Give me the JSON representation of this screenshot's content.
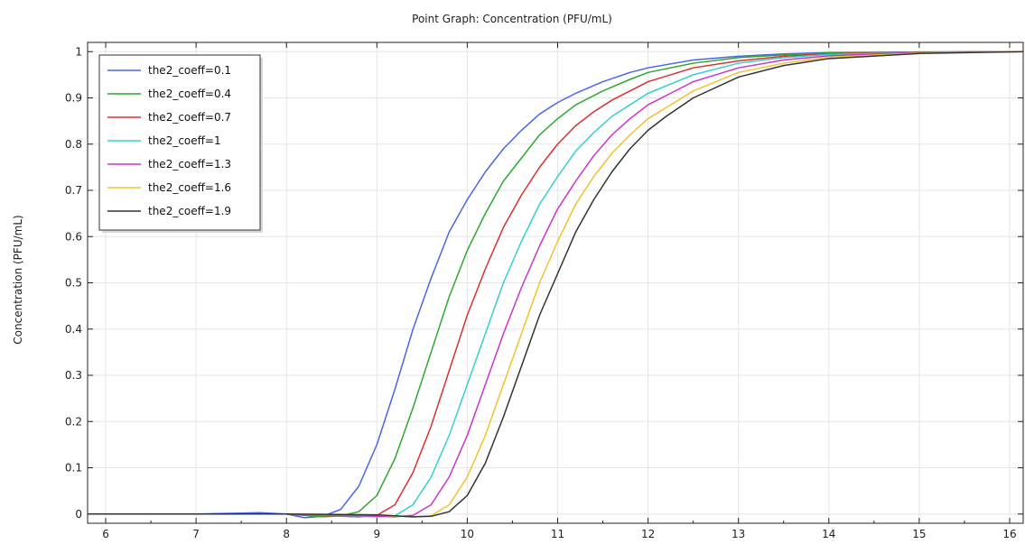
{
  "chart_data": {
    "type": "line",
    "title": "Point Graph: Concentration (PFU/mL)",
    "xlabel": "",
    "ylabel": "Concentration (PFU/mL)",
    "xlim": [
      5.8,
      16.15
    ],
    "ylim": [
      -0.02,
      1.02
    ],
    "grid": true,
    "legend_position": "top-left",
    "x_ticks": [
      6,
      7,
      8,
      9,
      10,
      11,
      12,
      13,
      14,
      15,
      16
    ],
    "y_ticks": [
      0,
      0.1,
      0.2,
      0.3,
      0.4,
      0.5,
      0.6,
      0.7,
      0.8,
      0.9,
      1
    ],
    "x_tick_labels": [
      "6",
      "7",
      "8",
      "9",
      "10",
      "11",
      "12",
      "13",
      "14",
      "15",
      "16"
    ],
    "y_tick_labels": [
      "0",
      "0.1",
      "0.2",
      "0.3",
      "0.4",
      "0.5",
      "0.6",
      "0.7",
      "0.8",
      "0.9",
      "1"
    ],
    "series": [
      {
        "name": "the2_coeff=0.1",
        "color": "#4a66e8",
        "x": [
          5.8,
          7.0,
          7.5,
          7.7,
          8.0,
          8.2,
          8.4,
          8.6,
          8.8,
          9.0,
          9.2,
          9.4,
          9.6,
          9.8,
          10.0,
          10.2,
          10.4,
          10.6,
          10.8,
          11.0,
          11.2,
          11.5,
          11.8,
          12.0,
          12.5,
          13.0,
          13.5,
          14.0,
          15.0,
          16.15
        ],
        "y": [
          0,
          0,
          0.002,
          0.003,
          0,
          -0.008,
          -0.005,
          0.01,
          0.06,
          0.15,
          0.27,
          0.4,
          0.51,
          0.61,
          0.68,
          0.74,
          0.79,
          0.83,
          0.865,
          0.89,
          0.91,
          0.935,
          0.955,
          0.965,
          0.982,
          0.99,
          0.995,
          0.998,
          0.999,
          1.0
        ]
      },
      {
        "name": "the2_coeff=0.4",
        "color": "#2fa82f",
        "x": [
          5.8,
          7.0,
          8.0,
          8.4,
          8.6,
          8.8,
          9.0,
          9.2,
          9.4,
          9.6,
          9.8,
          10.0,
          10.2,
          10.4,
          10.6,
          10.8,
          11.0,
          11.2,
          11.5,
          11.8,
          12.0,
          12.5,
          13.0,
          13.5,
          14.0,
          15.0,
          16.15
        ],
        "y": [
          0,
          0,
          0,
          -0.006,
          -0.004,
          0.005,
          0.04,
          0.12,
          0.23,
          0.35,
          0.47,
          0.57,
          0.65,
          0.72,
          0.77,
          0.82,
          0.855,
          0.885,
          0.915,
          0.94,
          0.955,
          0.975,
          0.987,
          0.993,
          0.997,
          0.999,
          1.0
        ]
      },
      {
        "name": "the2_coeff=0.7",
        "color": "#d93030",
        "x": [
          5.8,
          7.0,
          8.0,
          8.6,
          8.8,
          9.0,
          9.2,
          9.4,
          9.6,
          9.8,
          10.0,
          10.2,
          10.4,
          10.6,
          10.8,
          11.0,
          11.2,
          11.4,
          11.6,
          11.8,
          12.0,
          12.5,
          13.0,
          13.5,
          14.0,
          15.0,
          16.15
        ],
        "y": [
          0,
          0,
          0,
          -0.005,
          -0.006,
          -0.003,
          0.02,
          0.09,
          0.19,
          0.31,
          0.43,
          0.53,
          0.62,
          0.69,
          0.75,
          0.8,
          0.84,
          0.87,
          0.895,
          0.915,
          0.935,
          0.965,
          0.98,
          0.99,
          0.995,
          0.999,
          1.0
        ]
      },
      {
        "name": "the2_coeff=1",
        "color": "#33d0d0",
        "x": [
          5.8,
          7.0,
          8.0,
          8.8,
          9.0,
          9.2,
          9.4,
          9.6,
          9.8,
          10.0,
          10.2,
          10.4,
          10.6,
          10.8,
          11.0,
          11.2,
          11.4,
          11.6,
          11.8,
          12.0,
          12.5,
          13.0,
          13.5,
          14.0,
          15.0,
          16.15
        ],
        "y": [
          0,
          0,
          0,
          -0.005,
          -0.006,
          -0.004,
          0.02,
          0.08,
          0.17,
          0.28,
          0.39,
          0.5,
          0.59,
          0.67,
          0.73,
          0.785,
          0.825,
          0.86,
          0.885,
          0.91,
          0.95,
          0.975,
          0.987,
          0.994,
          0.998,
          1.0
        ]
      },
      {
        "name": "the2_coeff=1.3",
        "color": "#cc33cc",
        "x": [
          5.8,
          7.0,
          8.0,
          9.0,
          9.2,
          9.4,
          9.6,
          9.8,
          10.0,
          10.2,
          10.4,
          10.6,
          10.8,
          11.0,
          11.2,
          11.4,
          11.6,
          11.8,
          12.0,
          12.5,
          13.0,
          13.5,
          14.0,
          15.0,
          16.15
        ],
        "y": [
          0,
          0,
          0,
          -0.005,
          -0.006,
          -0.003,
          0.02,
          0.08,
          0.17,
          0.28,
          0.39,
          0.49,
          0.58,
          0.66,
          0.72,
          0.775,
          0.82,
          0.855,
          0.885,
          0.935,
          0.965,
          0.982,
          0.991,
          0.998,
          1.0
        ]
      },
      {
        "name": "the2_coeff=1.6",
        "color": "#f2c12e",
        "x": [
          5.8,
          7.0,
          8.0,
          9.0,
          9.2,
          9.4,
          9.6,
          9.8,
          10.0,
          10.2,
          10.4,
          10.6,
          10.8,
          11.0,
          11.2,
          11.4,
          11.6,
          11.8,
          12.0,
          12.5,
          13.0,
          13.5,
          14.0,
          15.0,
          16.15
        ],
        "y": [
          0,
          0,
          0,
          -0.002,
          -0.005,
          -0.006,
          -0.004,
          0.02,
          0.08,
          0.17,
          0.28,
          0.39,
          0.5,
          0.59,
          0.67,
          0.73,
          0.78,
          0.82,
          0.855,
          0.915,
          0.955,
          0.975,
          0.988,
          0.997,
          1.0
        ]
      },
      {
        "name": "the2_coeff=1.9",
        "color": "#333333",
        "x": [
          5.8,
          7.0,
          8.0,
          9.0,
          9.2,
          9.4,
          9.6,
          9.8,
          10.0,
          10.2,
          10.4,
          10.6,
          10.8,
          11.0,
          11.2,
          11.4,
          11.6,
          11.8,
          12.0,
          12.2,
          12.5,
          13.0,
          13.5,
          14.0,
          15.0,
          16.15
        ],
        "y": [
          0,
          0,
          0,
          -0.002,
          -0.004,
          -0.006,
          -0.005,
          0.005,
          0.04,
          0.11,
          0.21,
          0.32,
          0.43,
          0.52,
          0.61,
          0.68,
          0.74,
          0.79,
          0.83,
          0.86,
          0.9,
          0.945,
          0.97,
          0.985,
          0.996,
          1.0
        ]
      }
    ]
  }
}
